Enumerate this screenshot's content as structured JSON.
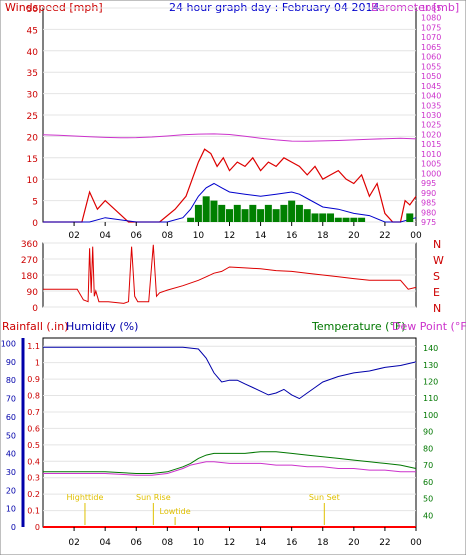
{
  "chart_data": [
    {
      "type": "line",
      "panel": "wind-pressure",
      "title": "24 hour graph day : February 04 2014",
      "left_axis_label": "Windspeed [mph]",
      "right_axis_label": "Barometer [mb]",
      "left_ylim": [
        0,
        50
      ],
      "left_ticks": [
        "0",
        "5",
        "10",
        "15",
        "20",
        "25",
        "30",
        "35",
        "40",
        "45",
        "50"
      ],
      "right_ylim": [
        975,
        1085
      ],
      "right_ticks": [
        "975",
        "980",
        "985",
        "990",
        "995",
        "1000",
        "1005",
        "1010",
        "1015",
        "1020",
        "1025",
        "1030",
        "1035",
        "1040",
        "1045",
        "1050",
        "1055",
        "1060",
        "1065",
        "1070",
        "1075",
        "1080",
        "1085"
      ],
      "x_hour_range": [
        0,
        24
      ],
      "x_ticks": [
        "02",
        "04",
        "06",
        "08",
        "10",
        "12",
        "14",
        "16",
        "18",
        "20",
        "22",
        "00"
      ],
      "series": [
        {
          "axis": "right",
          "color": "#cc33cc",
          "hours": [
            0,
            1,
            2,
            3,
            4,
            5,
            6,
            7,
            8,
            9,
            10,
            11,
            12,
            13,
            14,
            15,
            16,
            17,
            18,
            19,
            20,
            21,
            22,
            23,
            24
          ],
          "values": [
            1019.8,
            1019.6,
            1019.2,
            1018.8,
            1018.5,
            1018.3,
            1018.4,
            1018.7,
            1019.2,
            1019.8,
            1020.2,
            1020.3,
            1020.0,
            1019.1,
            1018.1,
            1017.2,
            1016.6,
            1016.5,
            1016.7,
            1016.9,
            1017.2,
            1017.5,
            1017.8,
            1018.1,
            1017.7
          ]
        },
        {
          "name": "gust",
          "axis": "left",
          "color": "#dd0000",
          "hours": [
            0,
            2.5,
            3,
            3.5,
            4,
            5.5,
            6.5,
            7.5,
            8.5,
            9.2,
            9.6,
            10,
            10.4,
            10.8,
            11.2,
            11.6,
            12,
            12.5,
            13,
            13.5,
            14,
            14.5,
            15,
            15.5,
            16,
            16.5,
            17,
            17.5,
            18,
            18.5,
            19,
            19.5,
            20,
            20.5,
            21,
            21.5,
            22,
            22.5,
            23,
            23.3,
            23.6,
            24
          ],
          "values": [
            0,
            0,
            7,
            3,
            5,
            0,
            0,
            0,
            3,
            6,
            10,
            14,
            17,
            16,
            13,
            15,
            12,
            14,
            13,
            15,
            12,
            14,
            13,
            15,
            14,
            13,
            11,
            13,
            10,
            11,
            12,
            10,
            9,
            11,
            6,
            9,
            2,
            0,
            0,
            5,
            4,
            6
          ]
        },
        {
          "name": "average",
          "axis": "left",
          "color": "#0000cc",
          "hours": [
            0,
            3,
            4,
            6,
            8,
            9,
            9.5,
            10,
            10.5,
            11,
            11.5,
            12,
            13,
            14,
            15,
            16,
            16.5,
            17,
            18,
            19,
            20,
            21,
            22,
            23,
            24
          ],
          "values": [
            0,
            0,
            1,
            0,
            0,
            1,
            3,
            6,
            8,
            9,
            8,
            7,
            6.5,
            6,
            6.5,
            7,
            6.5,
            5.5,
            3.5,
            3,
            2,
            1.5,
            0,
            0,
            1
          ]
        },
        {
          "name": "wind-bars",
          "axis": "left",
          "color": "#008000",
          "hours": [
            9.5,
            10,
            10.5,
            11,
            11.5,
            12,
            12.5,
            13,
            13.5,
            14,
            14.5,
            15,
            15.5,
            16,
            16.5,
            17,
            17.5,
            18,
            18.5,
            19,
            19.5,
            20,
            20.5,
            21,
            23.6
          ],
          "values": [
            1,
            4,
            6,
            5,
            4,
            3,
            4,
            3,
            4,
            3,
            4,
            3,
            4,
            5,
            4,
            3,
            2,
            2,
            2,
            1,
            1,
            1,
            1,
            0,
            2
          ]
        }
      ]
    },
    {
      "type": "line",
      "panel": "wind-direction",
      "left_ylim": [
        0,
        360
      ],
      "left_ticks": [
        "0",
        "90",
        "180",
        "270",
        "360"
      ],
      "right_labels": [
        "N",
        "W",
        "S",
        "E",
        "N"
      ],
      "x_ticks": [
        "02",
        "04",
        "06",
        "08",
        "10",
        "12",
        "14",
        "16",
        "18",
        "20",
        "22",
        "00"
      ],
      "series": [
        {
          "name": "direction",
          "color": "#dd0000",
          "hours": [
            0,
            1.5,
            2.2,
            2.6,
            2.9,
            3.0,
            3.1,
            3.2,
            3.3,
            3.4,
            3.6,
            4.2,
            5.2,
            5.5,
            5.7,
            5.9,
            6.1,
            6.3,
            6.8,
            7.1,
            7.3,
            7.5,
            8.0,
            9.0,
            10.0,
            10.5,
            11.0,
            11.5,
            12.0,
            13.0,
            14.0,
            15.0,
            16.0,
            17.0,
            18.0,
            19.0,
            20.0,
            21.0,
            22.0,
            23.0,
            23.5,
            24.0
          ],
          "values": [
            100,
            100,
            100,
            40,
            30,
            330,
            80,
            340,
            60,
            90,
            30,
            30,
            20,
            30,
            340,
            60,
            30,
            30,
            30,
            350,
            60,
            80,
            95,
            120,
            150,
            170,
            190,
            200,
            225,
            220,
            215,
            205,
            200,
            190,
            180,
            170,
            160,
            150,
            150,
            150,
            100,
            110
          ]
        }
      ]
    },
    {
      "type": "line",
      "panel": "humidity-temperature",
      "left_axis_label": "Rainfall (.in)",
      "humidity_label": "Humidity (%)",
      "right_axis_label_temperature": "Temperature (°F)",
      "right_axis_label_dewpoint": "Dew Point (°F)",
      "rain_ticks": [
        "0",
        "0.1",
        "0.2",
        "0.3",
        "0.4",
        "0.5",
        "0.6",
        "0.7",
        "0.8",
        "0.9",
        "1",
        "1.1"
      ],
      "rain_ylim": [
        0,
        1.15
      ],
      "humidity_ticks": [
        "0",
        "10",
        "20",
        "30",
        "40",
        "50",
        "60",
        "70",
        "80",
        "90",
        "100"
      ],
      "humidity_ylim": [
        0,
        103
      ],
      "temp_ticks": [
        "40",
        "50",
        "60",
        "70",
        "80",
        "90",
        "100",
        "110",
        "120",
        "130",
        "140"
      ],
      "temp_ylim": [
        33,
        146
      ],
      "x_ticks": [
        "02",
        "04",
        "06",
        "08",
        "10",
        "12",
        "14",
        "16",
        "18",
        "20",
        "22",
        "00"
      ],
      "annotations": [
        {
          "text": "Highttide",
          "hour": 2.7,
          "level": "high"
        },
        {
          "text": "Sun Rise",
          "hour": 7.1,
          "level": "high"
        },
        {
          "text": "Lowtide",
          "hour": 8.5,
          "level": "low"
        },
        {
          "text": "Sun Set",
          "hour": 18.1,
          "level": "high"
        }
      ],
      "series": [
        {
          "name": "humidity",
          "axis": "humidity",
          "color": "#0000aa",
          "hours": [
            0,
            2,
            4,
            6,
            8,
            9,
            10,
            10.5,
            11,
            11.5,
            12,
            12.5,
            13,
            13.5,
            14,
            14.5,
            15,
            15.5,
            16,
            16.5,
            17,
            17.5,
            18,
            19,
            20,
            21,
            22,
            23,
            24
          ],
          "values": [
            98,
            98,
            98,
            98,
            98,
            98,
            97,
            92,
            84,
            79,
            80,
            80,
            78,
            76,
            74,
            72,
            73,
            75,
            72,
            70,
            73,
            76,
            79,
            82,
            84,
            85,
            87,
            88,
            90
          ]
        },
        {
          "name": "temperature",
          "axis": "temp",
          "color": "#007700",
          "hours": [
            0,
            2,
            4,
            6,
            7,
            8,
            9,
            9.5,
            10,
            10.5,
            11,
            12,
            13,
            14,
            15,
            16,
            17,
            18,
            19,
            20,
            21,
            22,
            23,
            24
          ],
          "values": [
            66,
            66,
            66,
            65,
            65,
            66,
            69,
            71,
            74,
            76,
            77,
            77,
            77,
            78,
            78,
            77,
            76,
            75,
            74,
            73,
            72,
            71,
            70,
            68
          ]
        },
        {
          "name": "dewpoint",
          "axis": "temp",
          "color": "#cc33cc",
          "hours": [
            0,
            2,
            4,
            6,
            7,
            8,
            9,
            9.5,
            10,
            10.5,
            11,
            12,
            13,
            14,
            15,
            16,
            17,
            18,
            19,
            20,
            21,
            22,
            23,
            24
          ],
          "values": [
            65,
            65,
            65,
            64,
            64,
            65,
            68,
            70,
            71,
            72,
            72,
            71,
            71,
            71,
            70,
            70,
            69,
            69,
            68,
            68,
            67,
            67,
            66,
            66
          ]
        },
        {
          "name": "rainfall",
          "axis": "rain",
          "color": "#ff0000",
          "hours": [
            0,
            24
          ],
          "values": [
            0,
            0
          ]
        }
      ]
    }
  ]
}
